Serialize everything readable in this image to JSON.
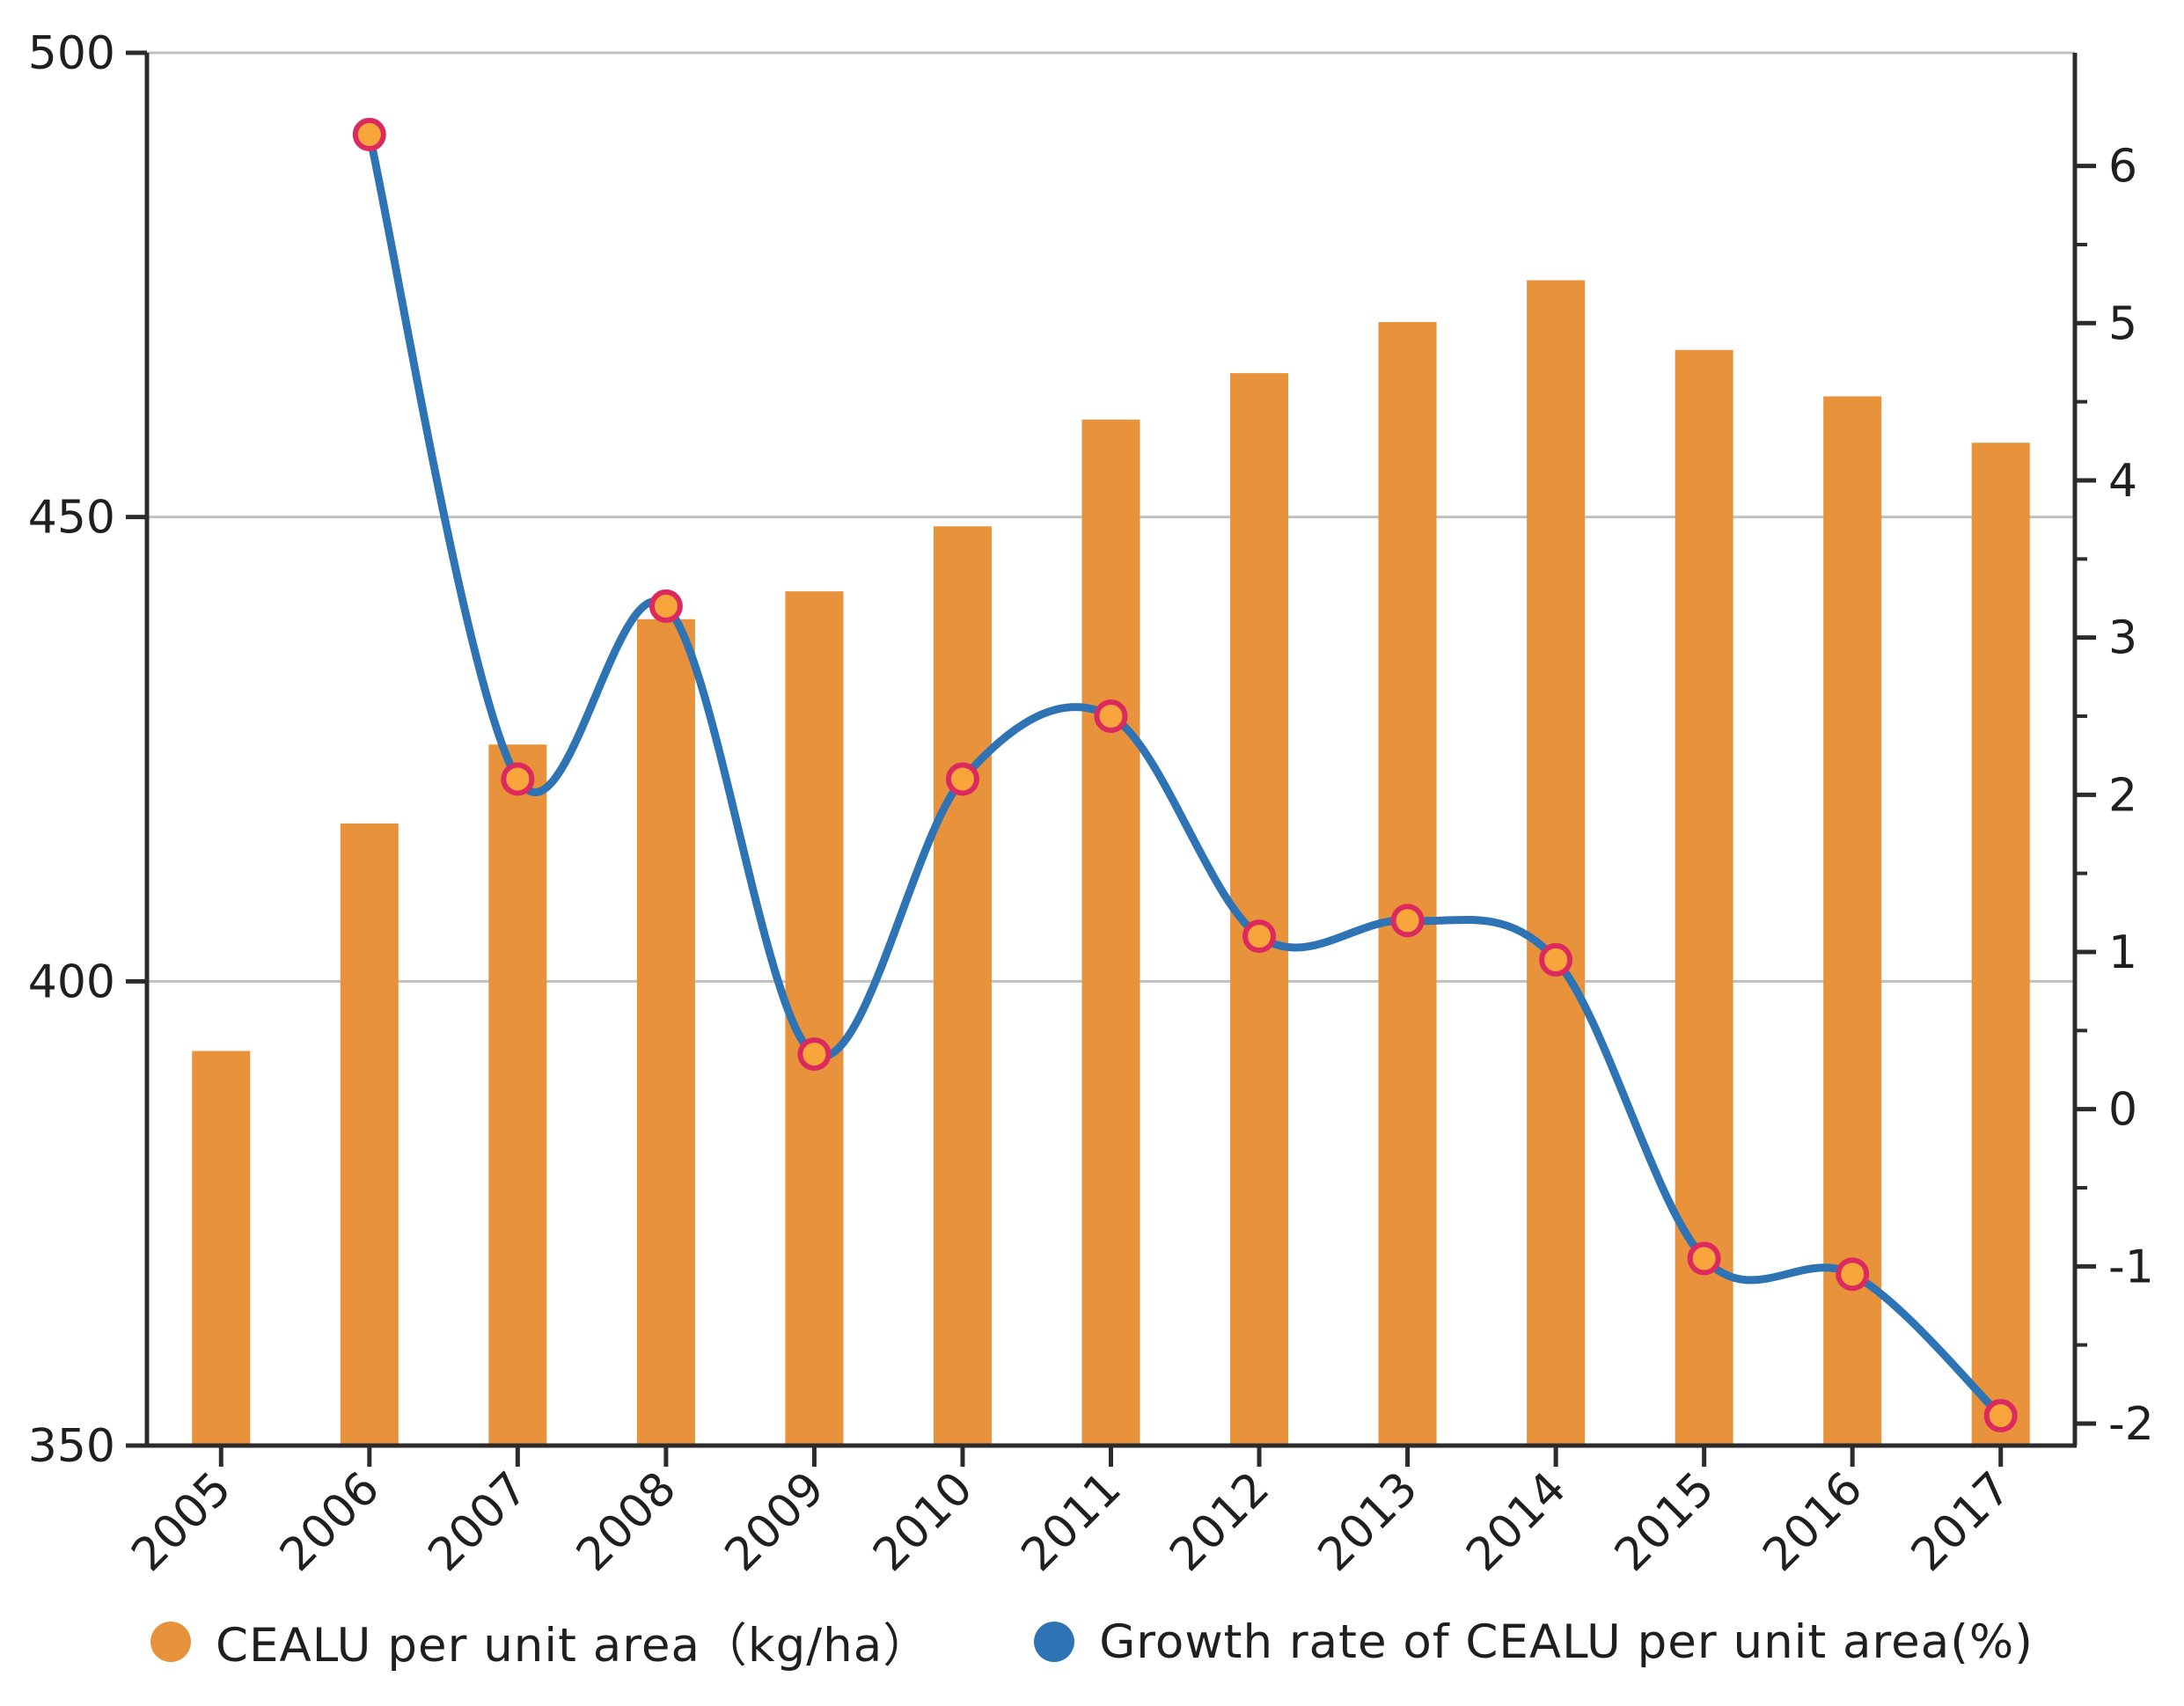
{
  "chart_data": {
    "type": "bar",
    "subtype": "bar-line-dual-axis",
    "title": "",
    "categories": [
      "2005",
      "2006",
      "2007",
      "2008",
      "2009",
      "2010",
      "2011",
      "2012",
      "2013",
      "2014",
      "2015",
      "2016",
      "2017"
    ],
    "series": [
      {
        "name": "CEALU per unit area（kg/ha）",
        "type": "bar",
        "axis": "left",
        "color": "#E8923C",
        "values": [
          392.5,
          417,
          425.5,
          439,
          442,
          449,
          460.5,
          465.5,
          471,
          475.5,
          468,
          463,
          458
        ]
      },
      {
        "name": "Growth rate of CEALU per unit area(%)",
        "type": "line",
        "axis": "right",
        "color": "#2E74B4",
        "marker_fill": "#F8A63C",
        "marker_edge": "#DC2A5E",
        "values": [
          null,
          6.2,
          2.1,
          3.2,
          0.35,
          2.1,
          2.5,
          1.1,
          1.2,
          0.95,
          -0.95,
          -1.05,
          -1.95
        ]
      }
    ],
    "left_axis": {
      "min": 350,
      "max": 500,
      "ticks": [
        500,
        450,
        400,
        350
      ]
    },
    "right_axis": {
      "min": -2.14,
      "max": 6.72,
      "ticks": [
        6,
        5,
        4,
        3,
        2,
        1,
        0,
        -1,
        -2
      ],
      "minor_tick_step": 0.5
    },
    "gridlines_at_left_values": [
      500,
      450,
      400
    ],
    "grid": true,
    "legend_position": "bottom",
    "x_tick_rotation_deg": 45
  },
  "legend": {
    "bar_label": "CEALU per unit area（kg/ha）",
    "line_label": "Growth rate of CEALU per unit area(%)"
  },
  "colors": {
    "bar": "#E8923C",
    "line": "#2E74B4",
    "marker_fill": "#F8A63C",
    "marker_edge": "#DC2A5E",
    "gridline": "#C0C0C0",
    "spine": "#2b2b2b",
    "tick_label": "#1f1f1f",
    "background": "#ffffff"
  }
}
